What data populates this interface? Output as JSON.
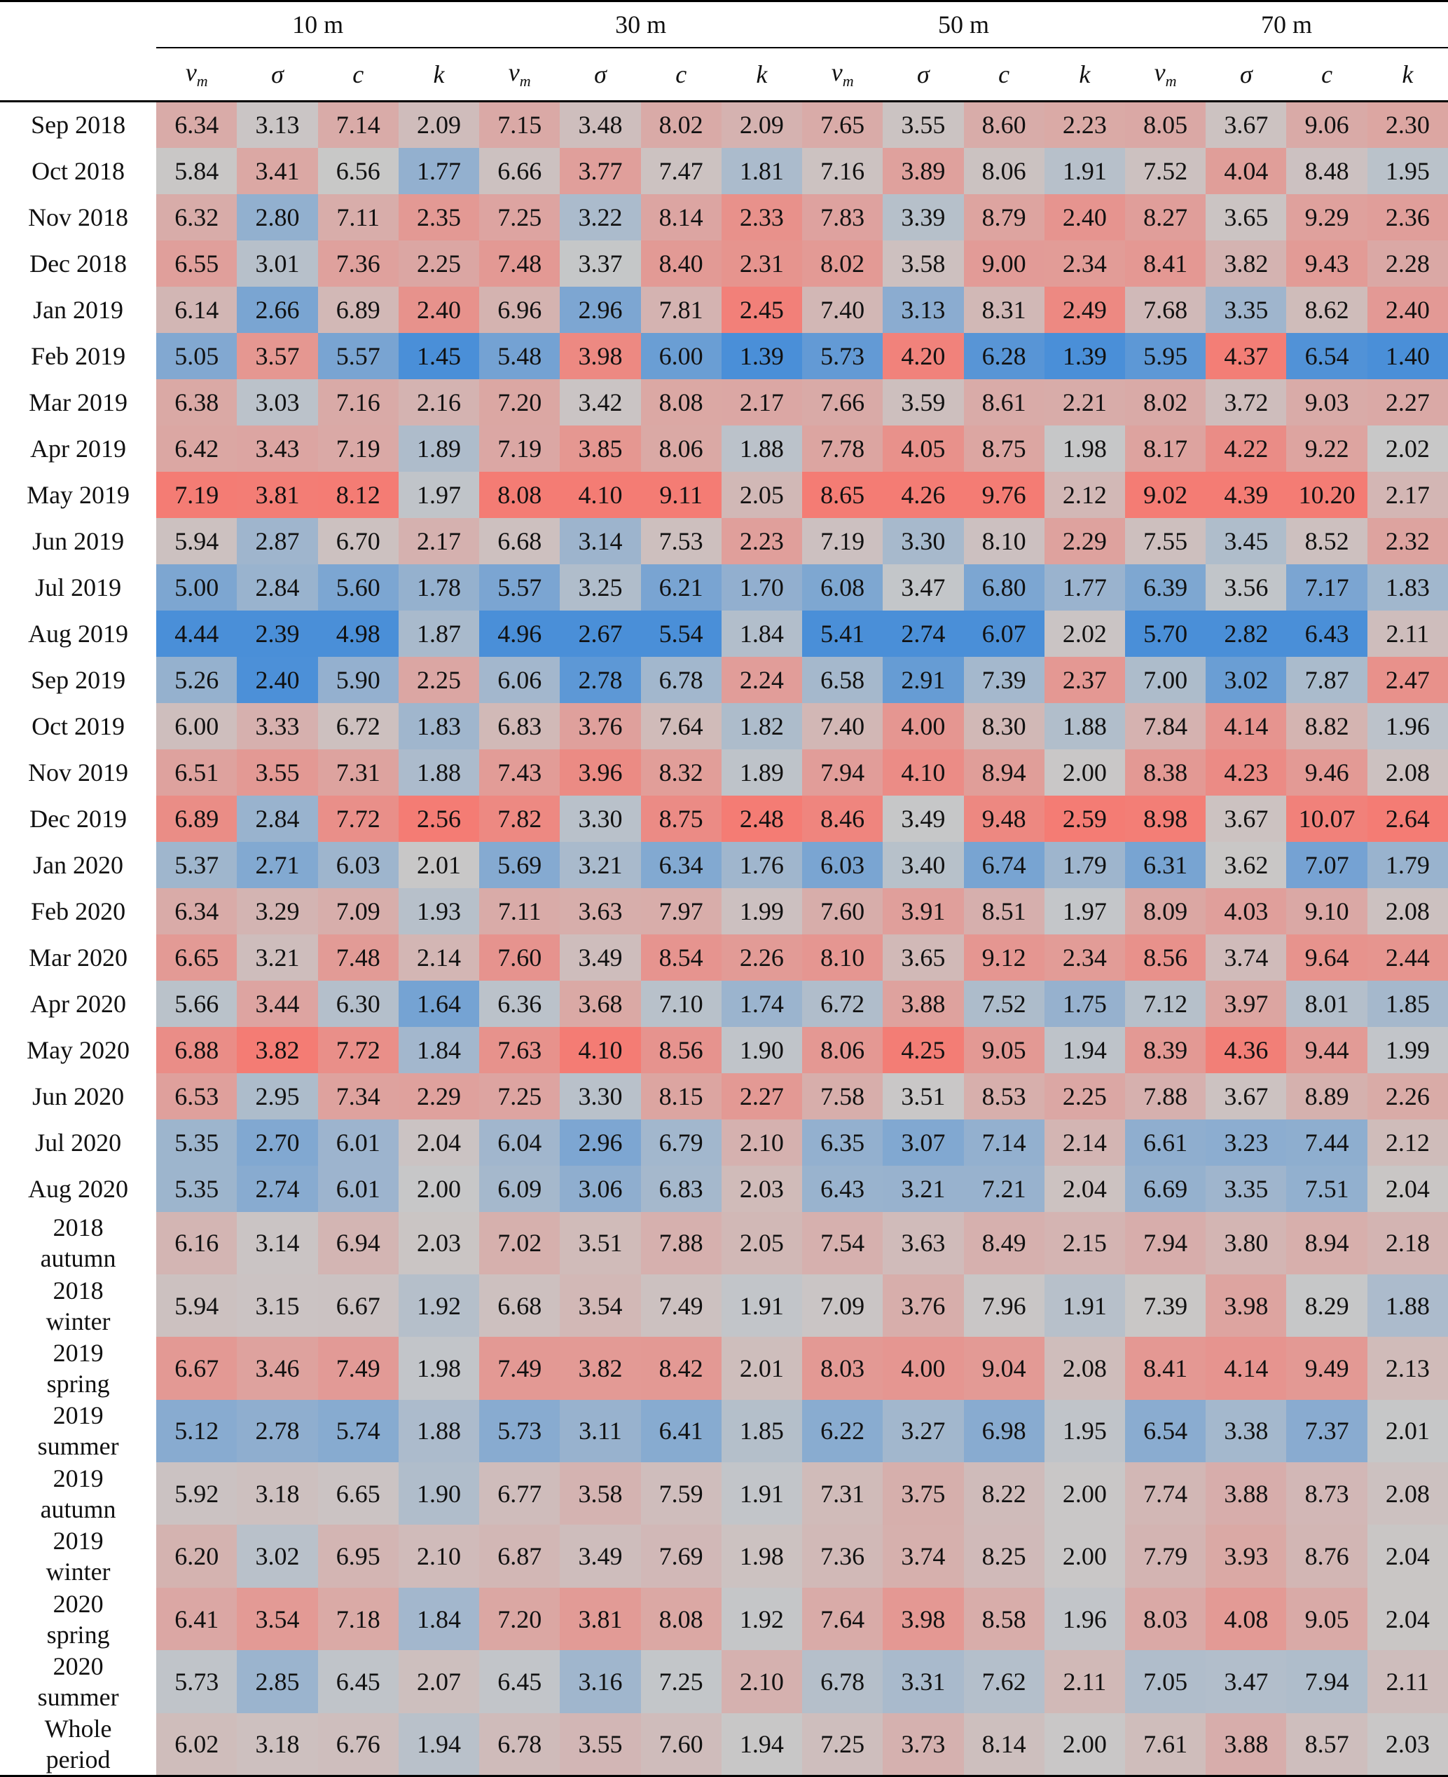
{
  "chart_data": {
    "type": "table",
    "title": "",
    "colormap": {
      "low": "#4a8fd8",
      "mid": "#c8c8c8",
      "high": "#f47c74"
    },
    "groups": [
      "10 m",
      "30 m",
      "50 m",
      "70 m"
    ],
    "columns": [
      "v",
      "σ",
      "c",
      "k"
    ],
    "column_subscript": [
      "m",
      "",
      "",
      ""
    ],
    "rows": [
      {
        "label": "Sep 2018",
        "values": [
          "6.34",
          "3.13",
          "7.14",
          "2.09",
          "7.15",
          "3.48",
          "8.02",
          "2.09",
          "7.65",
          "3.55",
          "8.60",
          "2.23",
          "8.05",
          "3.67",
          "9.06",
          "2.30"
        ]
      },
      {
        "label": "Oct 2018",
        "values": [
          "5.84",
          "3.41",
          "6.56",
          "1.77",
          "6.66",
          "3.77",
          "7.47",
          "1.81",
          "7.16",
          "3.89",
          "8.06",
          "1.91",
          "7.52",
          "4.04",
          "8.48",
          "1.95"
        ]
      },
      {
        "label": "Nov 2018",
        "values": [
          "6.32",
          "2.80",
          "7.11",
          "2.35",
          "7.25",
          "3.22",
          "8.14",
          "2.33",
          "7.83",
          "3.39",
          "8.79",
          "2.40",
          "8.27",
          "3.65",
          "9.29",
          "2.36"
        ]
      },
      {
        "label": "Dec 2018",
        "values": [
          "6.55",
          "3.01",
          "7.36",
          "2.25",
          "7.48",
          "3.37",
          "8.40",
          "2.31",
          "8.02",
          "3.58",
          "9.00",
          "2.34",
          "8.41",
          "3.82",
          "9.43",
          "2.28"
        ]
      },
      {
        "label": "Jan 2019",
        "values": [
          "6.14",
          "2.66",
          "6.89",
          "2.40",
          "6.96",
          "2.96",
          "7.81",
          "2.45",
          "7.40",
          "3.13",
          "8.31",
          "2.49",
          "7.68",
          "3.35",
          "8.62",
          "2.40"
        ]
      },
      {
        "label": "Feb 2019",
        "values": [
          "5.05",
          "3.57",
          "5.57",
          "1.45",
          "5.48",
          "3.98",
          "6.00",
          "1.39",
          "5.73",
          "4.20",
          "6.28",
          "1.39",
          "5.95",
          "4.37",
          "6.54",
          "1.40"
        ]
      },
      {
        "label": "Mar 2019",
        "values": [
          "6.38",
          "3.03",
          "7.16",
          "2.16",
          "7.20",
          "3.42",
          "8.08",
          "2.17",
          "7.66",
          "3.59",
          "8.61",
          "2.21",
          "8.02",
          "3.72",
          "9.03",
          "2.27"
        ]
      },
      {
        "label": "Apr 2019",
        "values": [
          "6.42",
          "3.43",
          "7.19",
          "1.89",
          "7.19",
          "3.85",
          "8.06",
          "1.88",
          "7.78",
          "4.05",
          "8.75",
          "1.98",
          "8.17",
          "4.22",
          "9.22",
          "2.02"
        ]
      },
      {
        "label": "May 2019",
        "values": [
          "7.19",
          "3.81",
          "8.12",
          "1.97",
          "8.08",
          "4.10",
          "9.11",
          "2.05",
          "8.65",
          "4.26",
          "9.76",
          "2.12",
          "9.02",
          "4.39",
          "10.20",
          "2.17"
        ]
      },
      {
        "label": "Jun 2019",
        "values": [
          "5.94",
          "2.87",
          "6.70",
          "2.17",
          "6.68",
          "3.14",
          "7.53",
          "2.23",
          "7.19",
          "3.30",
          "8.10",
          "2.29",
          "7.55",
          "3.45",
          "8.52",
          "2.32"
        ]
      },
      {
        "label": "Jul 2019",
        "values": [
          "5.00",
          "2.84",
          "5.60",
          "1.78",
          "5.57",
          "3.25",
          "6.21",
          "1.70",
          "6.08",
          "3.47",
          "6.80",
          "1.77",
          "6.39",
          "3.56",
          "7.17",
          "1.83"
        ]
      },
      {
        "label": "Aug 2019",
        "values": [
          "4.44",
          "2.39",
          "4.98",
          "1.87",
          "4.96",
          "2.67",
          "5.54",
          "1.84",
          "5.41",
          "2.74",
          "6.07",
          "2.02",
          "5.70",
          "2.82",
          "6.43",
          "2.11"
        ]
      },
      {
        "label": "Sep 2019",
        "values": [
          "5.26",
          "2.40",
          "5.90",
          "2.25",
          "6.06",
          "2.78",
          "6.78",
          "2.24",
          "6.58",
          "2.91",
          "7.39",
          "2.37",
          "7.00",
          "3.02",
          "7.87",
          "2.47"
        ]
      },
      {
        "label": "Oct 2019",
        "values": [
          "6.00",
          "3.33",
          "6.72",
          "1.83",
          "6.83",
          "3.76",
          "7.64",
          "1.82",
          "7.40",
          "4.00",
          "8.30",
          "1.88",
          "7.84",
          "4.14",
          "8.82",
          "1.96"
        ]
      },
      {
        "label": "Nov 2019",
        "values": [
          "6.51",
          "3.55",
          "7.31",
          "1.88",
          "7.43",
          "3.96",
          "8.32",
          "1.89",
          "7.94",
          "4.10",
          "8.94",
          "2.00",
          "8.38",
          "4.23",
          "9.46",
          "2.08"
        ]
      },
      {
        "label": "Dec 2019",
        "values": [
          "6.89",
          "2.84",
          "7.72",
          "2.56",
          "7.82",
          "3.30",
          "8.75",
          "2.48",
          "8.46",
          "3.49",
          "9.48",
          "2.59",
          "8.98",
          "3.67",
          "10.07",
          "2.64"
        ]
      },
      {
        "label": "Jan 2020",
        "values": [
          "5.37",
          "2.71",
          "6.03",
          "2.01",
          "5.69",
          "3.21",
          "6.34",
          "1.76",
          "6.03",
          "3.40",
          "6.74",
          "1.79",
          "6.31",
          "3.62",
          "7.07",
          "1.79"
        ]
      },
      {
        "label": "Feb 2020",
        "values": [
          "6.34",
          "3.29",
          "7.09",
          "1.93",
          "7.11",
          "3.63",
          "7.97",
          "1.99",
          "7.60",
          "3.91",
          "8.51",
          "1.97",
          "8.09",
          "4.03",
          "9.10",
          "2.08"
        ]
      },
      {
        "label": "Mar 2020",
        "values": [
          "6.65",
          "3.21",
          "7.48",
          "2.14",
          "7.60",
          "3.49",
          "8.54",
          "2.26",
          "8.10",
          "3.65",
          "9.12",
          "2.34",
          "8.56",
          "3.74",
          "9.64",
          "2.44"
        ]
      },
      {
        "label": "Apr 2020",
        "values": [
          "5.66",
          "3.44",
          "6.30",
          "1.64",
          "6.36",
          "3.68",
          "7.10",
          "1.74",
          "6.72",
          "3.88",
          "7.52",
          "1.75",
          "7.12",
          "3.97",
          "8.01",
          "1.85"
        ]
      },
      {
        "label": "May 2020",
        "values": [
          "6.88",
          "3.82",
          "7.72",
          "1.84",
          "7.63",
          "4.10",
          "8.56",
          "1.90",
          "8.06",
          "4.25",
          "9.05",
          "1.94",
          "8.39",
          "4.36",
          "9.44",
          "1.99"
        ]
      },
      {
        "label": "Jun 2020",
        "values": [
          "6.53",
          "2.95",
          "7.34",
          "2.29",
          "7.25",
          "3.30",
          "8.15",
          "2.27",
          "7.58",
          "3.51",
          "8.53",
          "2.25",
          "7.88",
          "3.67",
          "8.89",
          "2.26"
        ]
      },
      {
        "label": "Jul 2020",
        "values": [
          "5.35",
          "2.70",
          "6.01",
          "2.04",
          "6.04",
          "2.96",
          "6.79",
          "2.10",
          "6.35",
          "3.07",
          "7.14",
          "2.14",
          "6.61",
          "3.23",
          "7.44",
          "2.12"
        ]
      },
      {
        "label": "Aug 2020",
        "values": [
          "5.35",
          "2.74",
          "6.01",
          "2.00",
          "6.09",
          "3.06",
          "6.83",
          "2.03",
          "6.43",
          "3.21",
          "7.21",
          "2.04",
          "6.69",
          "3.35",
          "7.51",
          "2.04"
        ]
      },
      {
        "label": "2018 autumn",
        "label_lines": [
          "2018",
          "autumn"
        ],
        "values": [
          "6.16",
          "3.14",
          "6.94",
          "2.03",
          "7.02",
          "3.51",
          "7.88",
          "2.05",
          "7.54",
          "3.63",
          "8.49",
          "2.15",
          "7.94",
          "3.80",
          "8.94",
          "2.18"
        ]
      },
      {
        "label": "2018 winter",
        "label_lines": [
          "2018",
          "winter"
        ],
        "values": [
          "5.94",
          "3.15",
          "6.67",
          "1.92",
          "6.68",
          "3.54",
          "7.49",
          "1.91",
          "7.09",
          "3.76",
          "7.96",
          "1.91",
          "7.39",
          "3.98",
          "8.29",
          "1.88"
        ]
      },
      {
        "label": "2019 spring",
        "label_lines": [
          "2019",
          "spring"
        ],
        "values": [
          "6.67",
          "3.46",
          "7.49",
          "1.98",
          "7.49",
          "3.82",
          "8.42",
          "2.01",
          "8.03",
          "4.00",
          "9.04",
          "2.08",
          "8.41",
          "4.14",
          "9.49",
          "2.13"
        ]
      },
      {
        "label": "2019 summer",
        "label_lines": [
          "2019",
          "summer"
        ],
        "values": [
          "5.12",
          "2.78",
          "5.74",
          "1.88",
          "5.73",
          "3.11",
          "6.41",
          "1.85",
          "6.22",
          "3.27",
          "6.98",
          "1.95",
          "6.54",
          "3.38",
          "7.37",
          "2.01"
        ]
      },
      {
        "label": "2019 autumn",
        "label_lines": [
          "2019",
          "autumn"
        ],
        "values": [
          "5.92",
          "3.18",
          "6.65",
          "1.90",
          "6.77",
          "3.58",
          "7.59",
          "1.91",
          "7.31",
          "3.75",
          "8.22",
          "2.00",
          "7.74",
          "3.88",
          "8.73",
          "2.08"
        ]
      },
      {
        "label": "2019 winter",
        "label_lines": [
          "2019",
          "winter"
        ],
        "values": [
          "6.20",
          "3.02",
          "6.95",
          "2.10",
          "6.87",
          "3.49",
          "7.69",
          "1.98",
          "7.36",
          "3.74",
          "8.25",
          "2.00",
          "7.79",
          "3.93",
          "8.76",
          "2.04"
        ]
      },
      {
        "label": "2020 spring",
        "label_lines": [
          "2020",
          "spring"
        ],
        "values": [
          "6.41",
          "3.54",
          "7.18",
          "1.84",
          "7.20",
          "3.81",
          "8.08",
          "1.92",
          "7.64",
          "3.98",
          "8.58",
          "1.96",
          "8.03",
          "4.08",
          "9.05",
          "2.04"
        ]
      },
      {
        "label": "2020 summer",
        "label_lines": [
          "2020",
          "summer"
        ],
        "values": [
          "5.73",
          "2.85",
          "6.45",
          "2.07",
          "6.45",
          "3.16",
          "7.25",
          "2.10",
          "6.78",
          "3.31",
          "7.62",
          "2.11",
          "7.05",
          "3.47",
          "7.94",
          "2.11"
        ]
      },
      {
        "label": "Whole period",
        "label_lines": [
          "Whole",
          "period"
        ],
        "values": [
          "6.02",
          "3.18",
          "6.76",
          "1.94",
          "6.78",
          "3.55",
          "7.60",
          "1.94",
          "7.25",
          "3.73",
          "8.14",
          "2.00",
          "7.61",
          "3.88",
          "8.57",
          "2.03"
        ]
      }
    ]
  }
}
